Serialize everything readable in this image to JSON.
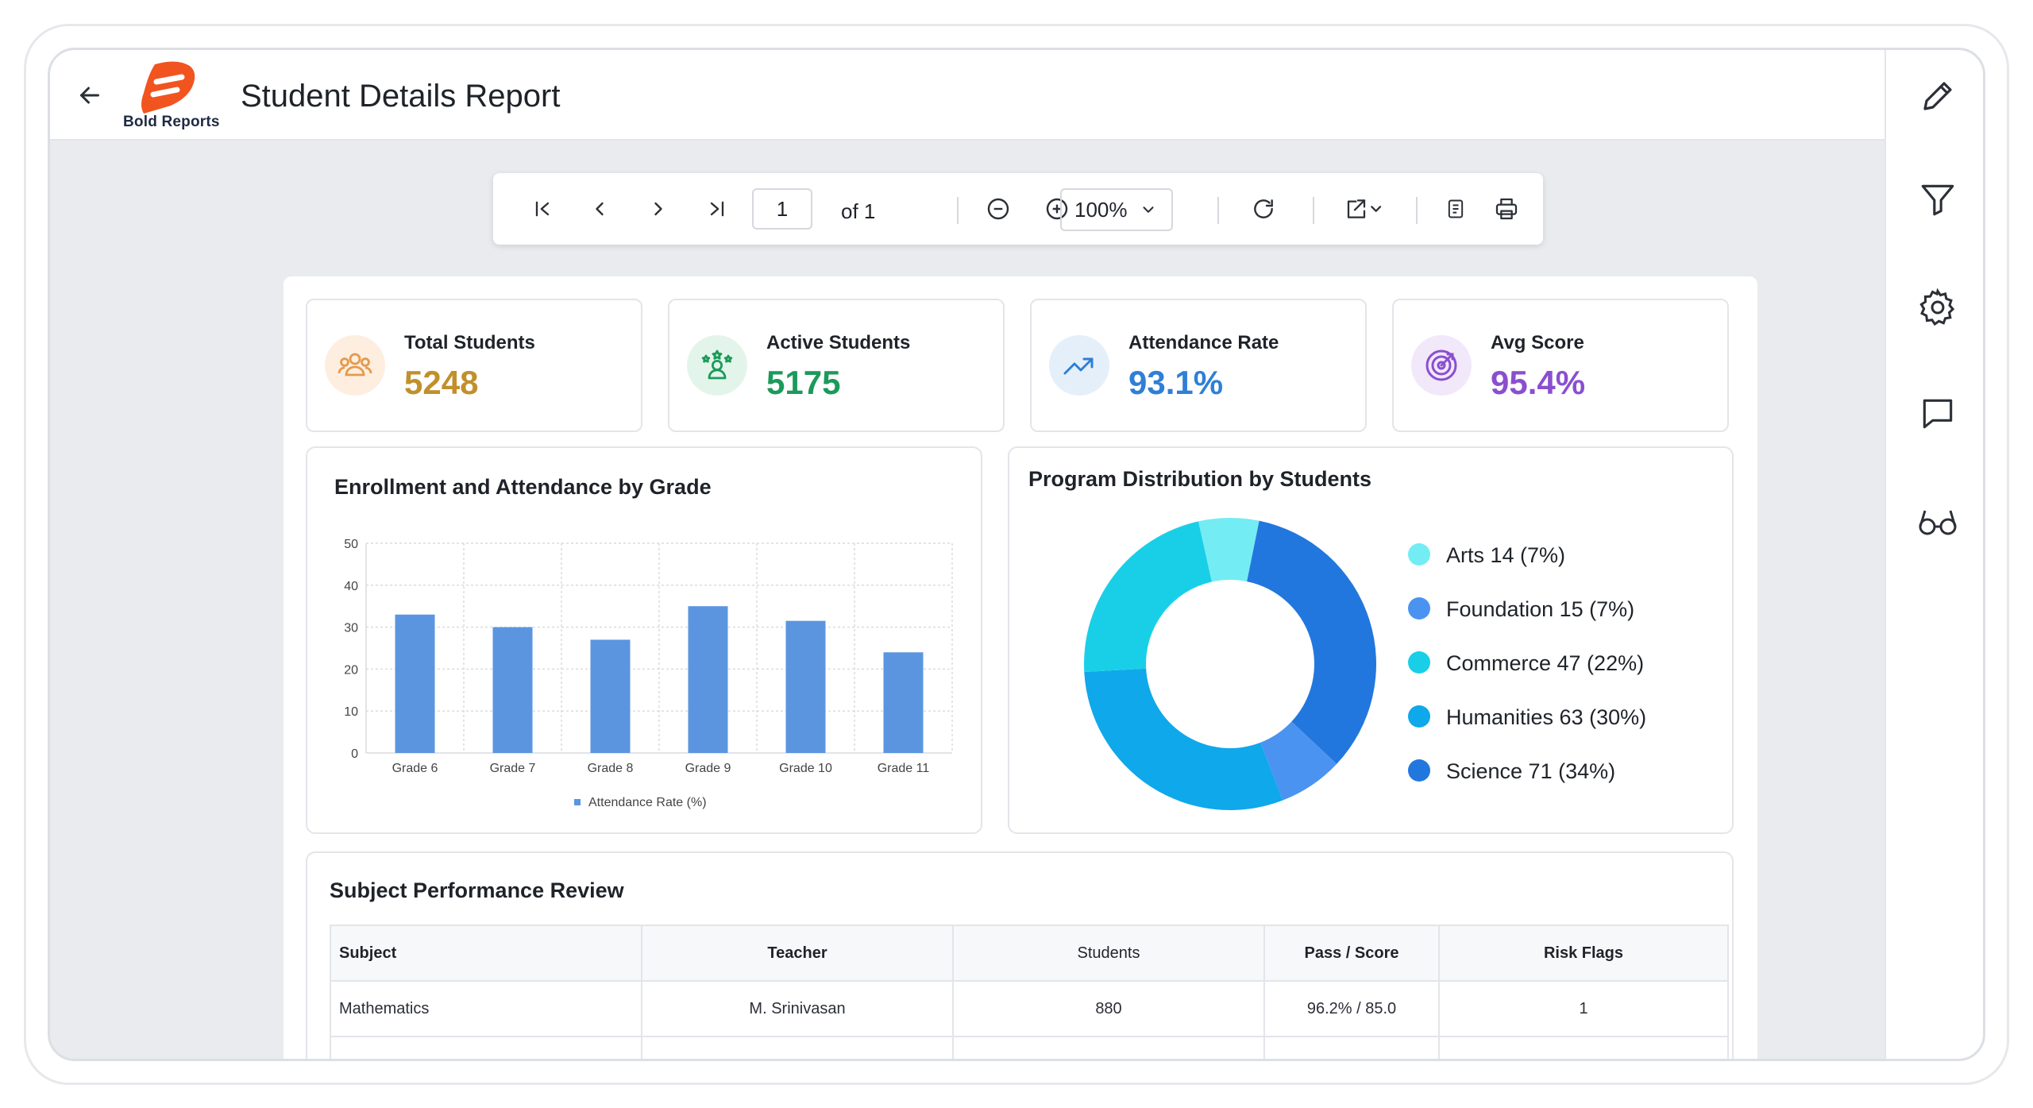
{
  "header": {
    "title": "Student Details Report",
    "logo_text": "Bold Reports"
  },
  "toolbar": {
    "page_value": "1",
    "page_of": "of 1",
    "zoom": "100%"
  },
  "kpis": [
    {
      "label": "Total Students",
      "value": "5248",
      "color": "#c0902c",
      "icon": "users-icon"
    },
    {
      "label": "Active Students",
      "value": "5175",
      "color": "#1b9a5a",
      "icon": "active-user-icon"
    },
    {
      "label": "Attendance Rate",
      "value": "93.1%",
      "color": "#2f7fd6",
      "icon": "trending-up-icon"
    },
    {
      "label": "Avg Score",
      "value": "95.4%",
      "color": "#8a4fcf",
      "icon": "target-icon"
    }
  ],
  "bar_panel": {
    "title": "Enrollment and Attendance by Grade"
  },
  "donut_panel": {
    "title": "Program Distribution by Students"
  },
  "chart_data": [
    {
      "type": "bar",
      "title": "Enrollment and Attendance by Grade",
      "categories": [
        "Grade 6",
        "Grade 7",
        "Grade 8",
        "Grade 9",
        "Grade 10",
        "Grade 11"
      ],
      "series": [
        {
          "name": "Attendance Rate (%)",
          "values": [
            33,
            30,
            27,
            35,
            31.5,
            24
          ]
        }
      ],
      "yticks": [
        "0",
        "10",
        "20",
        "30",
        "40",
        "50"
      ],
      "ylim": [
        0,
        50
      ],
      "grid": true,
      "legend": "bottom",
      "color": "#5b95e0"
    },
    {
      "type": "pie",
      "title": "Program Distribution by Students",
      "slices": [
        {
          "label": "Arts 14 (7%)",
          "name": "Arts",
          "value": 14,
          "color": "#74ecf3"
        },
        {
          "label": "Foundation 15 (7%)",
          "name": "Foundation",
          "value": 15,
          "color": "#4b93f0"
        },
        {
          "label": "Commerce 47 (22%)",
          "name": "Commerce",
          "value": 47,
          "color": "#19cfe8"
        },
        {
          "label": "Humanities 63 (30%)",
          "name": "Humanities",
          "value": 63,
          "color": "#0fa8ea"
        },
        {
          "label": "Science 71 (34%)",
          "name": "Science",
          "value": 71,
          "color": "#2277de"
        }
      ],
      "legend": "right"
    }
  ],
  "table": {
    "title": "Subject Performance Review",
    "headers": [
      "Subject",
      "Teacher",
      "Students",
      "Pass / Score",
      "Risk Flags"
    ],
    "rows": [
      [
        "Mathematics",
        "M. Srinivasan",
        "880",
        "96.2% / 85.0",
        "1"
      ],
      [
        "",
        "",
        "",
        "",
        ""
      ]
    ]
  }
}
